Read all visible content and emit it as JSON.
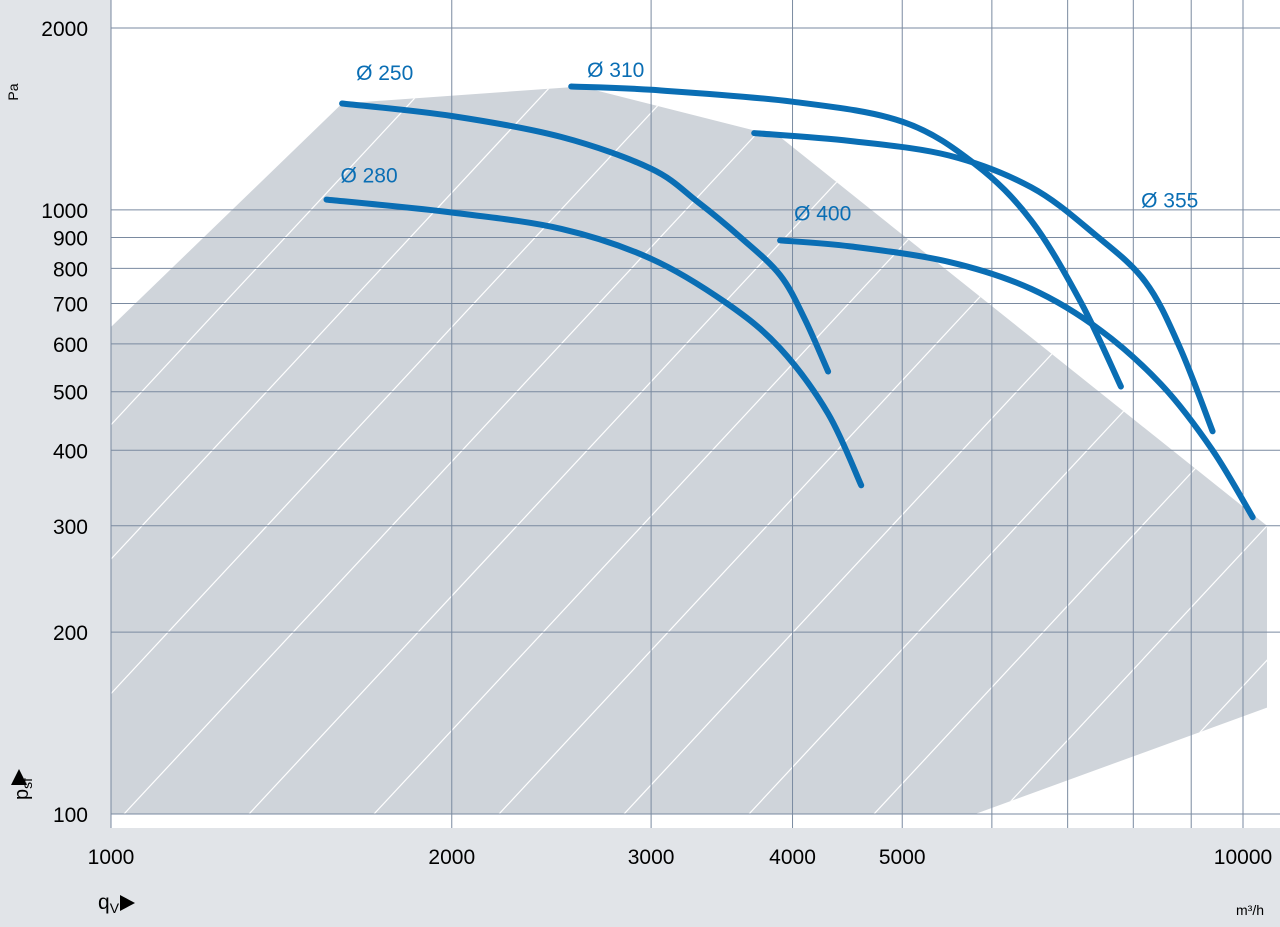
{
  "chart_data": {
    "type": "line",
    "x_scale": "log",
    "y_scale": "log",
    "xlim": [
      1000,
      10500
    ],
    "ylim": [
      100,
      2000
    ],
    "x_ticks": [
      1000,
      2000,
      3000,
      4000,
      5000,
      10000
    ],
    "x_tick_labels": [
      "1000",
      "2000",
      "3000",
      "4000",
      "5000",
      "10000"
    ],
    "x_grid": [
      2000,
      3000,
      4000,
      5000,
      6000,
      7000,
      8000,
      9000,
      10000
    ],
    "y_ticks": [
      100,
      200,
      300,
      400,
      500,
      600,
      700,
      800,
      900,
      1000,
      2000
    ],
    "y_tick_labels": [
      "100",
      "200",
      "300",
      "400",
      "500",
      "600",
      "700",
      "800",
      "900",
      "1000",
      "2000"
    ],
    "xlabel": "q",
    "xlabel_sub": "V",
    "ylabel": "p",
    "ylabel_sub": "sf",
    "x_unit": "m³/h",
    "y_unit": "Pa",
    "grid": true,
    "colors": {
      "curve": "#0a6eb4",
      "region": "#cfd4da",
      "plot_bg": "#ffffff",
      "page_bg": "#e1e4e8",
      "grid": "#7a8aa0"
    },
    "region": [
      [
        1000,
        640
      ],
      [
        1600,
        1500
      ],
      [
        2600,
        1600
      ],
      [
        3900,
        1320
      ],
      [
        10500,
        300
      ],
      [
        10500,
        150
      ],
      [
        5800,
        100
      ],
      [
        1000,
        100
      ]
    ],
    "series": [
      {
        "name": "Ø 250",
        "label_at": [
          1600,
          1640
        ],
        "points": [
          [
            1600,
            1500
          ],
          [
            2000,
            1430
          ],
          [
            2500,
            1320
          ],
          [
            3000,
            1170
          ],
          [
            3300,
            1030
          ],
          [
            3600,
            900
          ],
          [
            3900,
            780
          ],
          [
            4100,
            660
          ],
          [
            4300,
            540
          ]
        ]
      },
      {
        "name": "Ø 280",
        "label_at": [
          1550,
          1110
        ],
        "points": [
          [
            1550,
            1040
          ],
          [
            2000,
            990
          ],
          [
            2500,
            930
          ],
          [
            3000,
            830
          ],
          [
            3500,
            700
          ],
          [
            3900,
            590
          ],
          [
            4300,
            460
          ],
          [
            4600,
            350
          ]
        ]
      },
      {
        "name": "Ø 310",
        "label_at": [
          2560,
          1660
        ],
        "points": [
          [
            2550,
            1600
          ],
          [
            3000,
            1580
          ],
          [
            4000,
            1510
          ],
          [
            5000,
            1400
          ],
          [
            5800,
            1190
          ],
          [
            6500,
            960
          ],
          [
            7200,
            700
          ],
          [
            7800,
            510
          ]
        ]
      },
      {
        "name": "Ø 355",
        "label_at": [
          7900,
          1010
        ],
        "points": [
          [
            3700,
            1340
          ],
          [
            4500,
            1300
          ],
          [
            5500,
            1230
          ],
          [
            6500,
            1090
          ],
          [
            7400,
            910
          ],
          [
            8200,
            760
          ],
          [
            8800,
            590
          ],
          [
            9400,
            430
          ]
        ]
      },
      {
        "name": "Ø 400",
        "label_at": [
          3900,
          960
        ],
        "points": [
          [
            3900,
            890
          ],
          [
            4500,
            870
          ],
          [
            5500,
            820
          ],
          [
            6500,
            740
          ],
          [
            7500,
            630
          ],
          [
            8500,
            510
          ],
          [
            9400,
            400
          ],
          [
            10200,
            310
          ]
        ]
      }
    ]
  }
}
